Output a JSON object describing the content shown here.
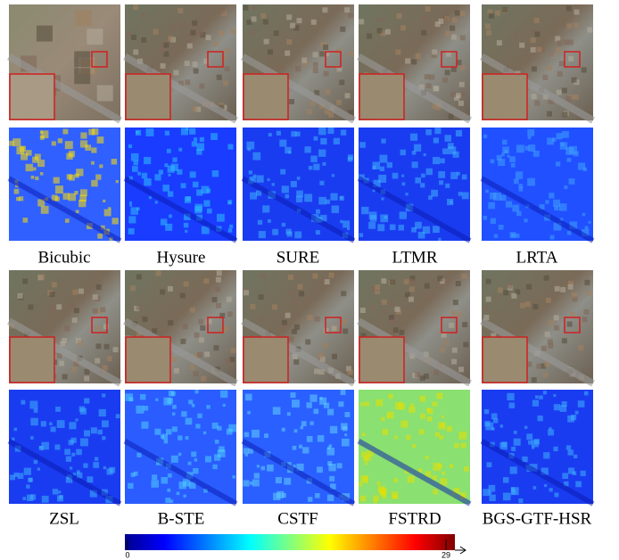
{
  "rows": [
    {
      "labels": [
        "Bicubic",
        "Hysure",
        "SURE",
        "LTMR",
        "LRTA"
      ]
    },
    {
      "labels": [
        "ZSL",
        "B-STE",
        "CSTF",
        "FSTRD",
        "BGS-GTF-HSR"
      ]
    }
  ],
  "colorbar": {
    "min": 0,
    "max": 29
  }
}
